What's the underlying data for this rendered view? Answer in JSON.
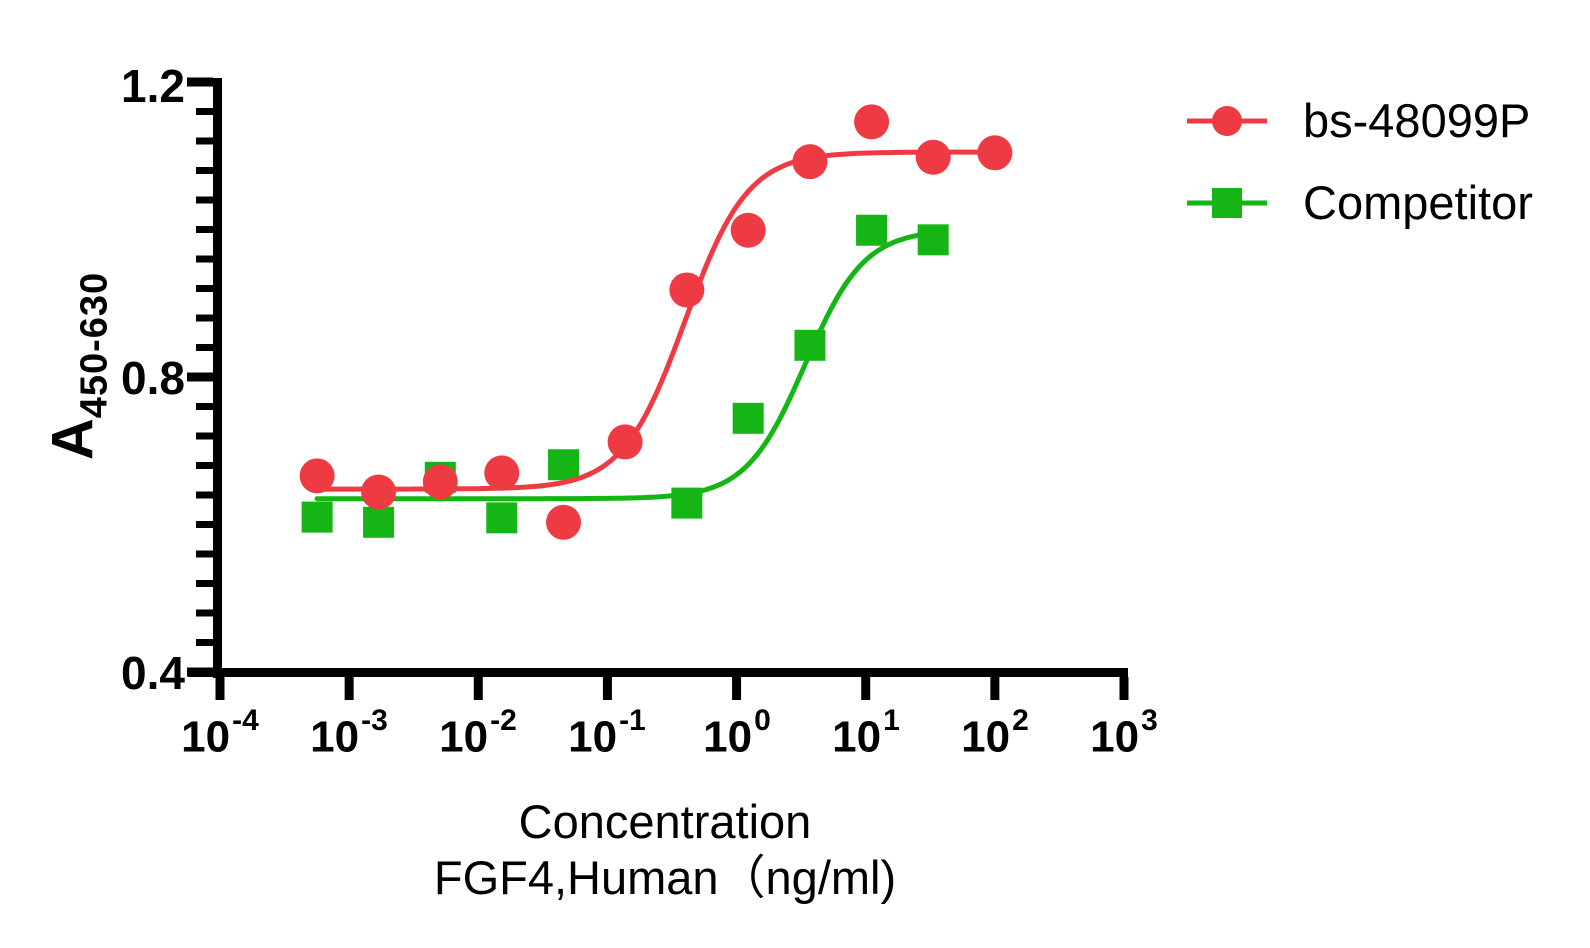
{
  "y_axis": {
    "label_main": "A",
    "label_sub": "450-630",
    "ticks": [
      "1.2",
      "0.8",
      "0.4"
    ]
  },
  "x_axis": {
    "title_line1": "Concentration",
    "title_line2": "FGF4,Human（ng/ml)",
    "ticks": [
      {
        "base": "10",
        "exp": "-4"
      },
      {
        "base": "10",
        "exp": "-3"
      },
      {
        "base": "10",
        "exp": "-2"
      },
      {
        "base": "10",
        "exp": "-1"
      },
      {
        "base": "10",
        "exp": "0"
      },
      {
        "base": "10",
        "exp": "1"
      },
      {
        "base": "10",
        "exp": "2"
      },
      {
        "base": "10",
        "exp": "3"
      }
    ]
  },
  "legend": [
    {
      "label": "bs-48099P",
      "color": "#EE3B43",
      "marker": "circle"
    },
    {
      "label": "Competitor",
      "color": "#16B516",
      "marker": "square"
    }
  ],
  "chart_data": {
    "type": "line",
    "x_scale": "log10",
    "title": "",
    "xlabel": "Concentration FGF4,Human (ng/ml)",
    "ylabel": "A450-630",
    "xlim_log": [
      -4,
      3
    ],
    "ylim": [
      0.4,
      1.2
    ],
    "y_major_ticks": [
      0.4,
      0.8,
      1.2
    ],
    "y_minor_step": 0.04,
    "x_ticks_log": [
      -4,
      -3,
      -2,
      -1,
      0,
      1,
      2,
      3
    ],
    "grid": false,
    "legend_position": "upper right outside",
    "series": [
      {
        "name": "bs-48099P",
        "color": "#EE3B43",
        "marker": "circle",
        "x": [
          0.000565,
          0.00169,
          0.00508,
          0.0152,
          0.0457,
          0.137,
          0.412,
          1.23,
          3.7,
          11.1,
          33.3,
          100
        ],
        "y": [
          0.666,
          0.644,
          0.658,
          0.67,
          0.603,
          0.712,
          0.918,
          0.999,
          1.092,
          1.146,
          1.098,
          1.104
        ],
        "fit": {
          "bottom": 0.648,
          "top": 1.105,
          "ec50": 0.4,
          "hill": 1.8
        }
      },
      {
        "name": "Competitor",
        "color": "#16B516",
        "marker": "square",
        "x": [
          0.000565,
          0.00169,
          0.00508,
          0.0152,
          0.0457,
          0.412,
          1.23,
          3.7,
          11.1,
          33.3
        ],
        "y": [
          0.61,
          0.603,
          0.664,
          0.609,
          0.681,
          0.629,
          0.744,
          0.843,
          0.999,
          0.986
        ],
        "fit": {
          "bottom": 0.635,
          "top": 1.0,
          "ec50": 3.4,
          "hill": 1.9
        }
      }
    ]
  }
}
